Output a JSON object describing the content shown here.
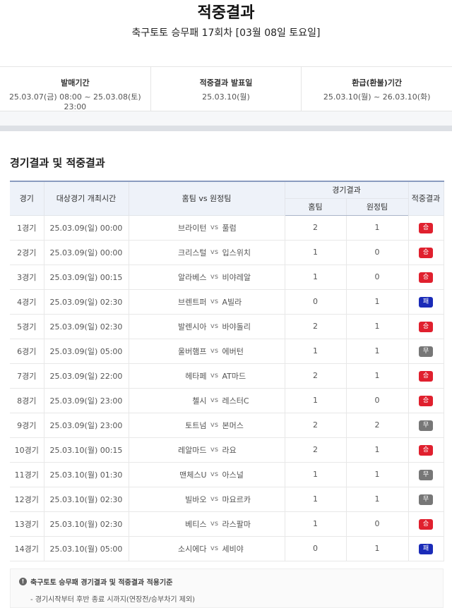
{
  "header": {
    "title": "적중결과",
    "subtitle": "축구토토 승무패 17회차 [03월 08일 토요일]"
  },
  "info": [
    {
      "label": "발매기간",
      "value": "25.03.07(금) 08:00 ~ 25.03.08(토) 23:00"
    },
    {
      "label": "적중결과 발표일",
      "value": "25.03.10(월)"
    },
    {
      "label": "환급(환불)기간",
      "value": "25.03.10(월) ~ 26.03.10(화)"
    }
  ],
  "section_title": "경기결과 및 적중결과",
  "table": {
    "headers": {
      "game": "경기",
      "time": "대상경기 개최시간",
      "teams": "홈팀 vs 원정팀",
      "result": "경기결과",
      "home": "홈팀",
      "away": "원정팀",
      "hit": "적중결과"
    },
    "vs": "vs",
    "rows": [
      {
        "game": "1경기",
        "time": "25.03.09(일) 00:00",
        "home_team": "브라이턴",
        "away_team": "풀럼",
        "home_score": "2",
        "away_score": "1",
        "result": "승"
      },
      {
        "game": "2경기",
        "time": "25.03.09(일) 00:00",
        "home_team": "크리스털",
        "away_team": "입스위치",
        "home_score": "1",
        "away_score": "0",
        "result": "승"
      },
      {
        "game": "3경기",
        "time": "25.03.09(일) 00:15",
        "home_team": "알라베스",
        "away_team": "비야레알",
        "home_score": "1",
        "away_score": "0",
        "result": "승"
      },
      {
        "game": "4경기",
        "time": "25.03.09(일) 02:30",
        "home_team": "브렌트퍼",
        "away_team": "A빌라",
        "home_score": "0",
        "away_score": "1",
        "result": "패"
      },
      {
        "game": "5경기",
        "time": "25.03.09(일) 02:30",
        "home_team": "발렌시아",
        "away_team": "바야돌리",
        "home_score": "2",
        "away_score": "1",
        "result": "승"
      },
      {
        "game": "6경기",
        "time": "25.03.09(일) 05:00",
        "home_team": "울버햄프",
        "away_team": "에버턴",
        "home_score": "1",
        "away_score": "1",
        "result": "무"
      },
      {
        "game": "7경기",
        "time": "25.03.09(일) 22:00",
        "home_team": "헤타페",
        "away_team": "AT마드",
        "home_score": "2",
        "away_score": "1",
        "result": "승"
      },
      {
        "game": "8경기",
        "time": "25.03.09(일) 23:00",
        "home_team": "첼시",
        "away_team": "레스터C",
        "home_score": "1",
        "away_score": "0",
        "result": "승"
      },
      {
        "game": "9경기",
        "time": "25.03.09(일) 23:00",
        "home_team": "토트넘",
        "away_team": "본머스",
        "home_score": "2",
        "away_score": "2",
        "result": "무"
      },
      {
        "game": "10경기",
        "time": "25.03.10(월) 00:15",
        "home_team": "레알마드",
        "away_team": "라요",
        "home_score": "2",
        "away_score": "1",
        "result": "승"
      },
      {
        "game": "11경기",
        "time": "25.03.10(월) 01:30",
        "home_team": "맨체스U",
        "away_team": "아스널",
        "home_score": "1",
        "away_score": "1",
        "result": "무"
      },
      {
        "game": "12경기",
        "time": "25.03.10(월) 02:30",
        "home_team": "빌바오",
        "away_team": "마요르카",
        "home_score": "1",
        "away_score": "1",
        "result": "무"
      },
      {
        "game": "13경기",
        "time": "25.03.10(월) 02:30",
        "home_team": "베티스",
        "away_team": "라스팔마",
        "home_score": "1",
        "away_score": "0",
        "result": "승"
      },
      {
        "game": "14경기",
        "time": "25.03.10(월) 05:00",
        "home_team": "소시에다",
        "away_team": "세비야",
        "home_score": "0",
        "away_score": "1",
        "result": "패"
      }
    ]
  },
  "result_colors": {
    "승": "#e0202e",
    "무": "#777777",
    "패": "#1a2bb8"
  },
  "note": {
    "icon": "exclamation-circle-icon",
    "title": "축구토토 승무패 경기결과 및 적중결과 적용기준",
    "desc": "- 경기시작부터 후반 종료 시까지(연장전/승부차기 제외)"
  }
}
